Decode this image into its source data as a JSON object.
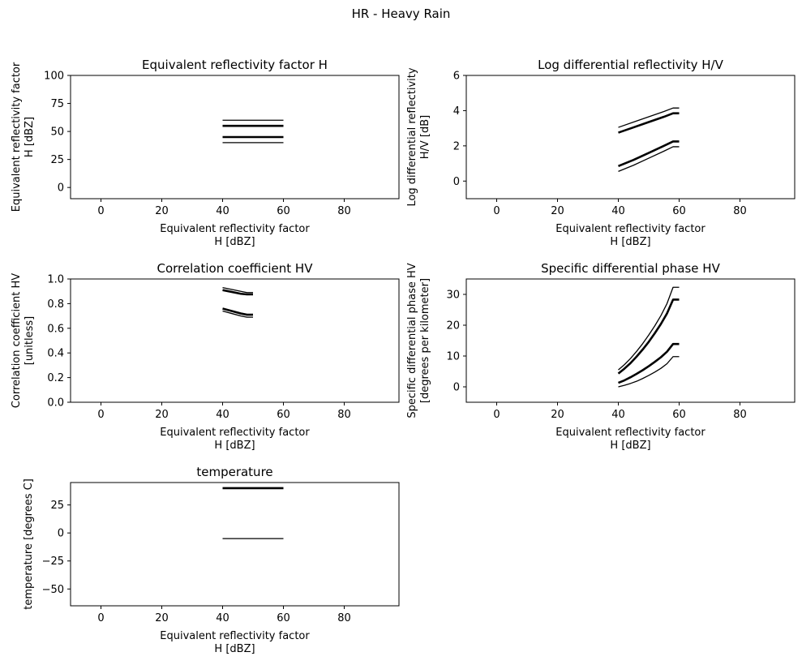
{
  "figure": {
    "suptitle": "HR - Heavy Rain"
  },
  "chart_data": [
    {
      "type": "line",
      "title": "Equivalent reflectivity factor H",
      "xlabel": [
        "Equivalent reflectivity factor",
        "H [dBZ]"
      ],
      "ylabel": [
        "Equivalent reflectivity factor",
        "H [dBZ]"
      ],
      "xlim": [
        -10,
        98
      ],
      "ylim": [
        -10,
        100
      ],
      "xticks": [
        0,
        20,
        40,
        60,
        80
      ],
      "yticks": [
        0,
        25,
        50,
        75,
        100
      ],
      "grid": false,
      "series": [
        {
          "style": "thin",
          "x": [
            40,
            60
          ],
          "y": [
            60,
            60
          ]
        },
        {
          "style": "thick",
          "x": [
            40,
            60
          ],
          "y": [
            55,
            55
          ]
        },
        {
          "style": "thick",
          "x": [
            40,
            60
          ],
          "y": [
            45,
            45
          ]
        },
        {
          "style": "thin",
          "x": [
            40,
            60
          ],
          "y": [
            40,
            40
          ]
        }
      ]
    },
    {
      "type": "line",
      "title": "Log differential reflectivity H/V",
      "xlabel": [
        "Equivalent reflectivity factor",
        "H [dBZ]"
      ],
      "ylabel": [
        "Log differential reflectivity",
        "H/V [dB]"
      ],
      "xlim": [
        -10,
        98
      ],
      "ylim": [
        -1,
        6
      ],
      "xticks": [
        0,
        20,
        40,
        60,
        80
      ],
      "yticks": [
        0,
        2,
        4,
        6
      ],
      "grid": false,
      "series": [
        {
          "style": "thin",
          "x": [
            40,
            45,
            50,
            55,
            58,
            60
          ],
          "y": [
            3.05,
            3.35,
            3.65,
            3.95,
            4.15,
            4.15
          ]
        },
        {
          "style": "thick",
          "x": [
            40,
            45,
            50,
            55,
            58,
            60
          ],
          "y": [
            2.75,
            3.05,
            3.35,
            3.65,
            3.85,
            3.85
          ]
        },
        {
          "style": "thick",
          "x": [
            40,
            45,
            50,
            55,
            58,
            60
          ],
          "y": [
            0.85,
            1.2,
            1.6,
            2.0,
            2.25,
            2.25
          ]
        },
        {
          "style": "thin",
          "x": [
            40,
            45,
            50,
            55,
            58,
            60
          ],
          "y": [
            0.55,
            0.9,
            1.3,
            1.7,
            1.95,
            1.95
          ]
        }
      ]
    },
    {
      "type": "line",
      "title": "Correlation coefficient HV",
      "xlabel": [
        "Equivalent reflectivity factor",
        "H [dBZ]"
      ],
      "ylabel": [
        "Correlation coefficient HV",
        "[unitless]"
      ],
      "xlim": [
        -10,
        98
      ],
      "ylim": [
        0,
        1
      ],
      "xticks": [
        0,
        20,
        40,
        60,
        80
      ],
      "yticks": [
        0.0,
        0.2,
        0.4,
        0.6,
        0.8,
        1.0
      ],
      "ytick_format": "fixed1",
      "grid": false,
      "series": [
        {
          "style": "thin",
          "x": [
            40,
            43,
            46,
            48,
            50
          ],
          "y": [
            0.93,
            0.915,
            0.9,
            0.89,
            0.89
          ]
        },
        {
          "style": "thick",
          "x": [
            40,
            43,
            46,
            48,
            50
          ],
          "y": [
            0.91,
            0.895,
            0.88,
            0.875,
            0.875
          ]
        },
        {
          "style": "thick",
          "x": [
            40,
            43,
            46,
            48,
            50
          ],
          "y": [
            0.76,
            0.74,
            0.72,
            0.71,
            0.71
          ]
        },
        {
          "style": "thin",
          "x": [
            40,
            43,
            46,
            48,
            50
          ],
          "y": [
            0.74,
            0.72,
            0.7,
            0.69,
            0.69
          ]
        }
      ]
    },
    {
      "type": "line",
      "title": "Specific differential phase HV",
      "xlabel": [
        "Equivalent reflectivity factor",
        "H [dBZ]"
      ],
      "ylabel": [
        "Specific differential phase HV",
        "[degrees per kilometer]"
      ],
      "xlim": [
        -10,
        98
      ],
      "ylim": [
        -5,
        35
      ],
      "xticks": [
        0,
        20,
        40,
        60,
        80
      ],
      "yticks": [
        0,
        10,
        20,
        30
      ],
      "grid": false,
      "series": [
        {
          "style": "thin",
          "x": [
            40,
            42,
            44,
            46,
            48,
            50,
            52,
            54,
            56,
            58,
            60
          ],
          "y": [
            5.5,
            7.2,
            9.2,
            11.5,
            14.0,
            16.8,
            19.8,
            23.1,
            27.0,
            32.3,
            32.3
          ]
        },
        {
          "style": "thick",
          "x": [
            40,
            42,
            44,
            46,
            48,
            50,
            52,
            54,
            56,
            58,
            60
          ],
          "y": [
            4.3,
            5.9,
            7.7,
            9.8,
            12.1,
            14.6,
            17.4,
            20.4,
            23.8,
            28.3,
            28.3
          ]
        },
        {
          "style": "thick",
          "x": [
            40,
            42,
            44,
            46,
            48,
            50,
            52,
            54,
            56,
            58,
            60
          ],
          "y": [
            1.3,
            2.1,
            3.1,
            4.2,
            5.4,
            6.7,
            8.1,
            9.6,
            11.4,
            13.9,
            13.9
          ]
        },
        {
          "style": "thin",
          "x": [
            40,
            42,
            44,
            46,
            48,
            50,
            52,
            54,
            56,
            58,
            60
          ],
          "y": [
            0.0,
            0.5,
            1.1,
            1.8,
            2.7,
            3.7,
            4.8,
            6.0,
            7.5,
            9.8,
            9.8
          ]
        }
      ]
    },
    {
      "type": "line",
      "title": "temperature",
      "xlabel": [
        "Equivalent reflectivity factor",
        "H [dBZ]"
      ],
      "ylabel": [
        "temperature [degrees C]"
      ],
      "xlim": [
        -10,
        98
      ],
      "ylim": [
        -65,
        45
      ],
      "xticks": [
        0,
        20,
        40,
        60,
        80
      ],
      "yticks": [
        -50,
        -25,
        0,
        25
      ],
      "grid": false,
      "series": [
        {
          "style": "thin",
          "x": [
            40,
            60
          ],
          "y": [
            40,
            40
          ]
        },
        {
          "style": "thick",
          "x": [
            40,
            60
          ],
          "y": [
            40,
            40
          ]
        },
        {
          "style": "thin",
          "x": [
            40,
            60
          ],
          "y": [
            -5,
            -5
          ]
        }
      ]
    }
  ]
}
